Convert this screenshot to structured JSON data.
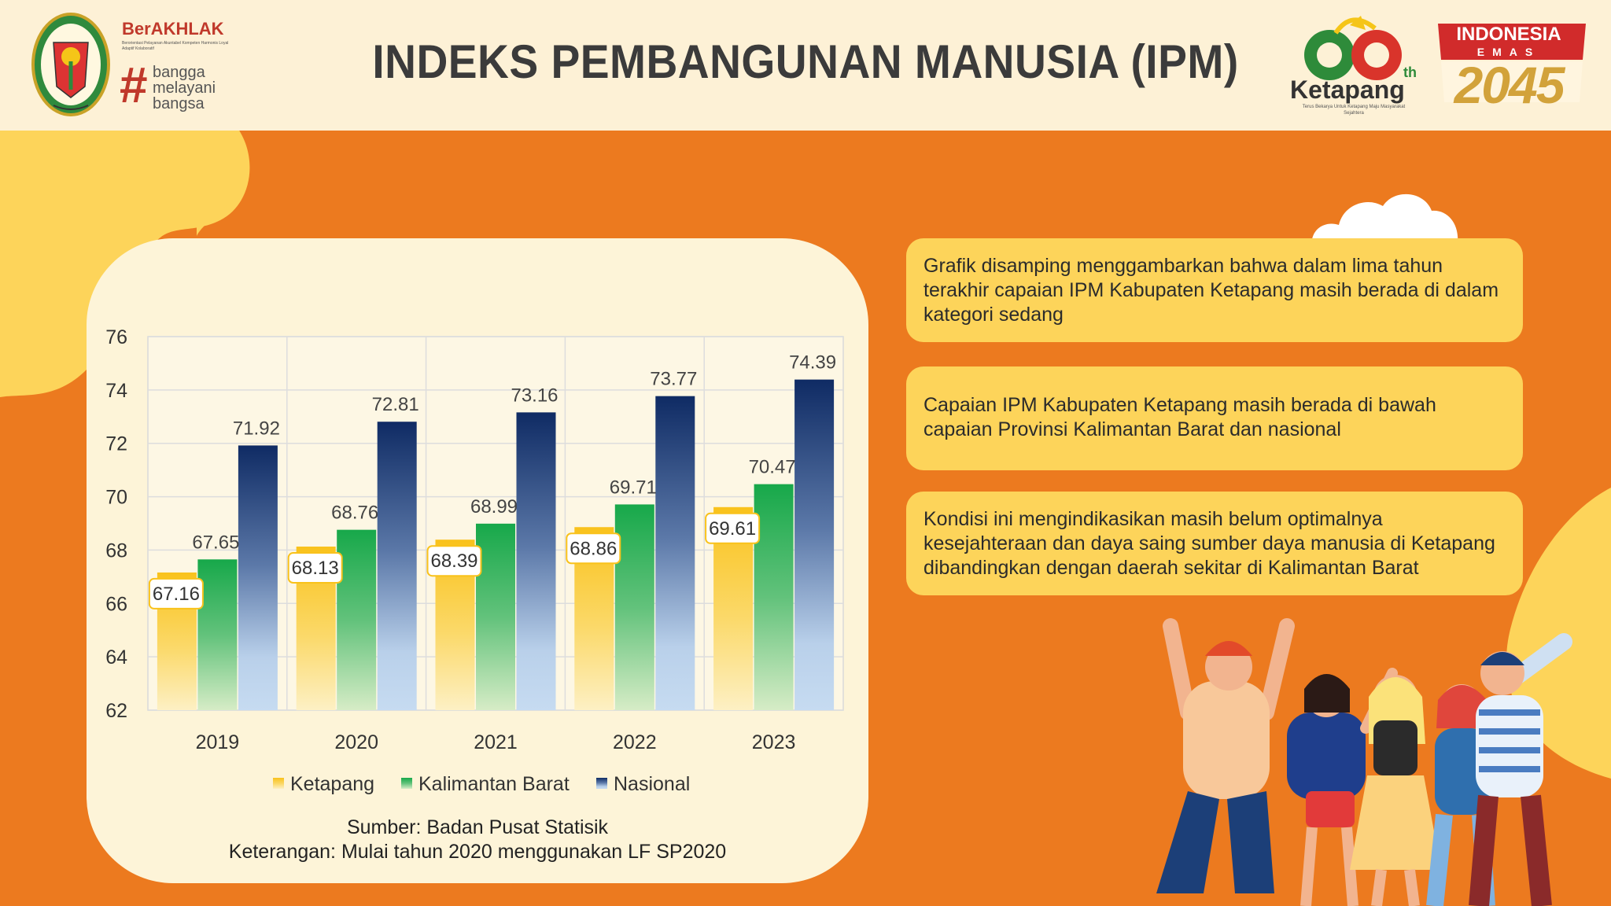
{
  "header": {
    "title": "INDEKS PEMBANGUNAN MANUSIA (IPM)",
    "left_logos": {
      "emblem_label": "KABUPATEN KETAPANG",
      "berakhlak": "BerAKHLAK",
      "berakhlak_sub": "Berorientasi Pelayanan Akuntabel Kompeten Harmonis Loyal Adaptif Kolaboratif",
      "tagline_lines": [
        "bangga",
        "melayani",
        "bangsa"
      ]
    },
    "right_logos": {
      "anniversary_word": "Ketapang",
      "anniversary_suffix": "th",
      "anniversary_sub": "Terus Bekarya Untuk Ketapang Maju Masyarakat Sejahtera",
      "emas_title": "INDONESIA",
      "emas_word": "EMAS",
      "emas_year": "2045"
    }
  },
  "chart_data": {
    "type": "bar",
    "categories": [
      "2019",
      "2020",
      "2021",
      "2022",
      "2023"
    ],
    "series": [
      {
        "name": "Ketapang",
        "values": [
          67.16,
          68.13,
          68.39,
          68.86,
          69.61
        ]
      },
      {
        "name": "Kalimantan Barat",
        "values": [
          67.65,
          68.76,
          68.99,
          69.71,
          70.47
        ]
      },
      {
        "name": "Nasional",
        "values": [
          71.92,
          72.81,
          73.16,
          73.77,
          74.39
        ]
      }
    ],
    "ylim": [
      62,
      76
    ],
    "yticks": [
      "62",
      "64",
      "66",
      "68",
      "70",
      "72",
      "74",
      "76"
    ],
    "value_labels": [
      [
        "67.16",
        "67.65",
        "71.92"
      ],
      [
        "68.13",
        "68.76",
        "72.81"
      ],
      [
        "68.39",
        "68.99",
        "73.16"
      ],
      [
        "68.86",
        "69.71",
        "73.77"
      ],
      [
        "69.61",
        "70.47",
        "74.39"
      ]
    ],
    "grid": true,
    "legend_position": "bottom",
    "colors": {
      "Ketapang": "#f9c21b",
      "Kalimantan Barat": "#17a84a",
      "Nasional": "#0f2b64"
    }
  },
  "source": {
    "line1": "Sumber: Badan Pusat Statisik",
    "line2": "Keterangan: Mulai tahun 2020 menggunakan LF SP2020"
  },
  "info_boxes": [
    "Grafik disamping menggambarkan bahwa dalam lima tahun terakhir capaian IPM Kabupaten Ketapang masih berada di dalam kategori sedang",
    "Capaian IPM Kabupaten Ketapang masih berada di bawah capaian Provinsi Kalimantan Barat dan nasional",
    "Kondisi ini mengindikasikan masih belum optimalnya kesejahteraan dan daya saing sumber daya manusia di Ketapang dibandingkan dengan daerah sekitar di Kalimantan Barat"
  ],
  "icons": {
    "emblem": "regional-emblem-icon",
    "people": "celebrating-people-illustration",
    "cloud": "cloud-icon"
  }
}
